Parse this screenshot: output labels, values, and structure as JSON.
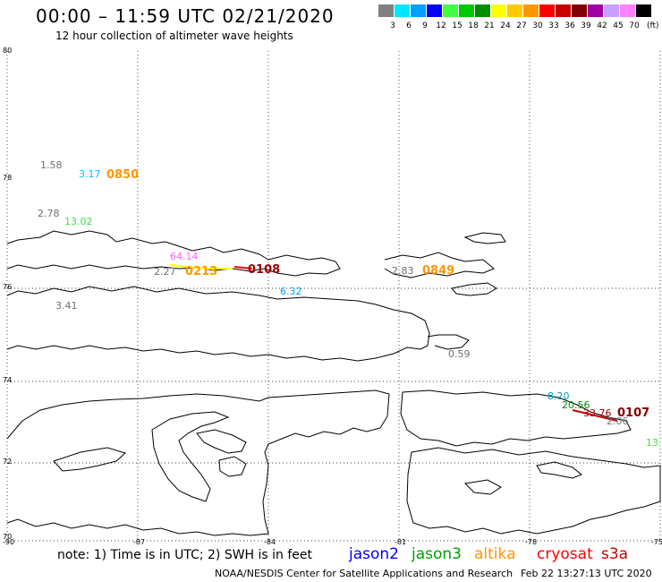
{
  "header": {
    "title": "00:00 – 11:59 UTC 02/21/2020",
    "subtitle": "12 hour collection of altimeter wave heights"
  },
  "legend": {
    "unit": "(ft)",
    "swatches": [
      {
        "label": "3",
        "color": "#808080"
      },
      {
        "label": "6",
        "color": "#00e6ff"
      },
      {
        "label": "9",
        "color": "#00a0ff"
      },
      {
        "label": "12",
        "color": "#0000ff"
      },
      {
        "label": "15",
        "color": "#40ff40"
      },
      {
        "label": "18",
        "color": "#00c800"
      },
      {
        "label": "21",
        "color": "#008c00"
      },
      {
        "label": "24",
        "color": "#ffff00"
      },
      {
        "label": "27",
        "color": "#ffc800"
      },
      {
        "label": "30",
        "color": "#ff9600"
      },
      {
        "label": "33",
        "color": "#ff0000"
      },
      {
        "label": "36",
        "color": "#c80000"
      },
      {
        "label": "39",
        "color": "#800000"
      },
      {
        "label": "42",
        "color": "#a000a0"
      },
      {
        "label": "45",
        "color": "#c8a0ff"
      },
      {
        "label": "70",
        "color": "#ff80ff"
      },
      {
        "label": "",
        "color": "#000000"
      }
    ]
  },
  "axes": {
    "latitudes": [
      "80",
      "78",
      "76",
      "74",
      "72",
      "70"
    ],
    "longitudes": [
      "-90",
      "-87",
      "-84",
      "-81",
      "-78",
      "-75"
    ]
  },
  "observations": [
    {
      "text": "1.58",
      "color": "#707070"
    },
    {
      "text": "3.17",
      "color": "#00c0ff"
    },
    {
      "text": "2.78",
      "color": "#707070"
    },
    {
      "text": "13.02",
      "color": "#40e040"
    },
    {
      "text": "64.14",
      "color": "#ff60ff"
    },
    {
      "text": "2.27",
      "color": "#707070"
    },
    {
      "text": "2.83",
      "color": "#707070"
    },
    {
      "text": "6.32",
      "color": "#00a0ff"
    },
    {
      "text": "3.41",
      "color": "#707070"
    },
    {
      "text": "0.59",
      "color": "#707070"
    },
    {
      "text": "8.20",
      "color": "#00a0c0"
    },
    {
      "text": "20.56",
      "color": "#008c00"
    },
    {
      "text": "33.76",
      "color": "#a00000"
    },
    {
      "text": "2.06",
      "color": "#707070"
    },
    {
      "text": "13.",
      "color": "#40e040"
    }
  ],
  "passes": [
    {
      "text": "0850",
      "color": "#ff9600"
    },
    {
      "text": "0213",
      "color": "#ff9600"
    },
    {
      "text": "0108",
      "color": "#a00000"
    },
    {
      "text": "0849",
      "color": "#ff9600"
    },
    {
      "text": "0107",
      "color": "#800000"
    }
  ],
  "footer": {
    "note": "note: 1) Time is in UTC; 2) SWH is in feet",
    "satellites": [
      {
        "name": "jason2",
        "color": "#0000ff"
      },
      {
        "name": "jason3",
        "color": "#00a000"
      },
      {
        "name": "altika",
        "color": "#ff9600"
      },
      {
        "name": "cryosat",
        "color": "#ff0000"
      },
      {
        "name": "s3a",
        "color": "#c80000"
      }
    ],
    "credit": "NOAA/NESDIS Center for Satellite Applications and Research",
    "timestamp": "Feb 22 13:27:13 UTC 2020"
  }
}
